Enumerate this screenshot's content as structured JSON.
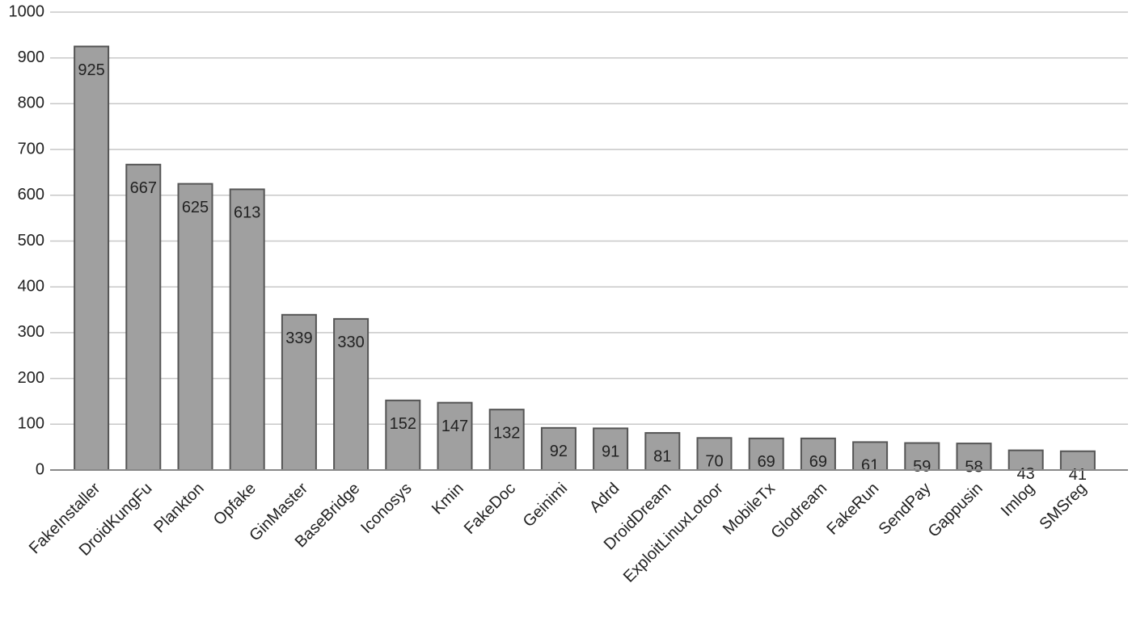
{
  "chart_data": {
    "type": "bar",
    "categories": [
      "FakeInstaller",
      "DroidKungFu",
      "Plankton",
      "Opfake",
      "GinMaster",
      "BaseBridge",
      "Iconosys",
      "Kmin",
      "FakeDoc",
      "Geinimi",
      "Adrd",
      "DroidDream",
      "ExploitLinuxLotoor",
      "MobileTx",
      "Glodream",
      "FakeRun",
      "SendPay",
      "Gappusin",
      "Imlog",
      "SMSreg"
    ],
    "values": [
      925,
      667,
      625,
      613,
      339,
      330,
      152,
      147,
      132,
      92,
      91,
      81,
      70,
      69,
      69,
      61,
      59,
      58,
      43,
      41
    ],
    "color": "#a0a0a0",
    "ylim": [
      0,
      1000
    ],
    "yticks": [
      0,
      100,
      200,
      300,
      400,
      500,
      600,
      700,
      800,
      900,
      1000
    ],
    "grid": true,
    "data_labels": true
  }
}
